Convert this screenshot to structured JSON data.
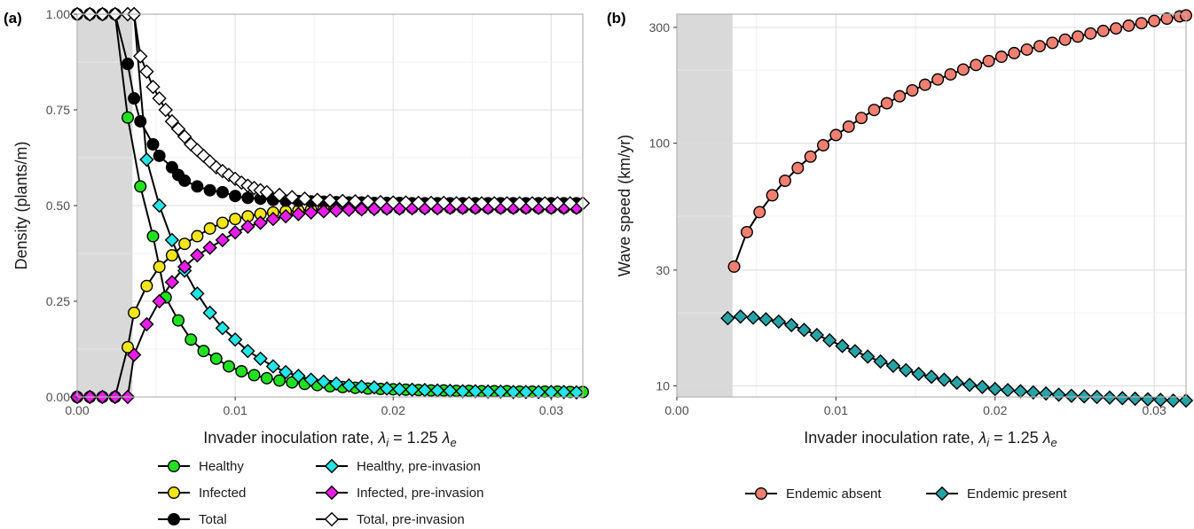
{
  "chart_data": [
    {
      "panel_label": "(a)",
      "type": "line",
      "ylabel": "Density (plants/m)",
      "xlabel": "Invader inoculation rate, λi = 1.25 λe",
      "xlim": [
        0,
        0.032
      ],
      "ylim": [
        0,
        1
      ],
      "x_ticks": [
        "0.00",
        "0.01",
        "0.02",
        "0.03"
      ],
      "y_ticks": [
        "0.00",
        "0.25",
        "0.50",
        "0.75",
        "1.00"
      ],
      "shaded_region_x": [
        0,
        0.0035
      ],
      "grid": true,
      "legend_position": "bottom",
      "series": [
        {
          "name": "Healthy",
          "marker": "circle",
          "color": "#1fe11f",
          "x": [
            0,
            0.0008,
            0.0016,
            0.0024,
            0.0032,
            0.004,
            0.0048,
            0.0056,
            0.0064,
            0.0072,
            0.008,
            0.0088,
            0.0096,
            0.0104,
            0.0112,
            0.012,
            0.0128,
            0.0136,
            0.0144,
            0.0152,
            0.016,
            0.0168,
            0.0176,
            0.0184,
            0.0192,
            0.02,
            0.0208,
            0.0216,
            0.0224,
            0.0232,
            0.024,
            0.0248,
            0.0256,
            0.0264,
            0.0272,
            0.028,
            0.0288,
            0.0296,
            0.0304,
            0.0312,
            0.032
          ],
          "y": [
            1,
            1,
            1,
            1,
            0.73,
            0.55,
            0.42,
            0.26,
            0.2,
            0.15,
            0.12,
            0.1,
            0.08,
            0.067,
            0.057,
            0.049,
            0.043,
            0.038,
            0.034,
            0.031,
            0.028,
            0.026,
            0.024,
            0.022,
            0.021,
            0.02,
            0.019,
            0.018,
            0.017,
            0.017,
            0.016,
            0.016,
            0.015,
            0.015,
            0.015,
            0.014,
            0.014,
            0.014,
            0.014,
            0.013,
            0.013
          ]
        },
        {
          "name": "Infected",
          "marker": "circle",
          "color": "#f2e51a",
          "x": [
            0,
            0.0008,
            0.0016,
            0.0024,
            0.0032,
            0.0036,
            0.0044,
            0.0052,
            0.006,
            0.0068,
            0.0076,
            0.0084,
            0.0092,
            0.01,
            0.0108,
            0.0116,
            0.0124,
            0.0132,
            0.014,
            0.0148,
            0.0156,
            0.0164,
            0.0172,
            0.018,
            0.0188,
            0.0196,
            0.0204,
            0.0212,
            0.022,
            0.0228,
            0.0236,
            0.0244,
            0.0252,
            0.026,
            0.0268,
            0.0276,
            0.0284,
            0.0292,
            0.03,
            0.0308,
            0.0316
          ],
          "y": [
            0,
            0,
            0,
            0,
            0.13,
            0.22,
            0.29,
            0.34,
            0.37,
            0.4,
            0.42,
            0.44,
            0.455,
            0.465,
            0.472,
            0.478,
            0.482,
            0.485,
            0.487,
            0.489,
            0.49,
            0.491,
            0.492,
            0.492,
            0.493,
            0.493,
            0.493,
            0.494,
            0.494,
            0.494,
            0.494,
            0.494,
            0.494,
            0.494,
            0.494,
            0.494,
            0.494,
            0.494,
            0.494,
            0.494,
            0.494
          ]
        },
        {
          "name": "Total",
          "marker": "circle",
          "color": "#000000",
          "x": [
            0,
            0.0008,
            0.0016,
            0.0024,
            0.0032,
            0.0036,
            0.004,
            0.0048,
            0.0052,
            0.006,
            0.0064,
            0.0068,
            0.0076,
            0.0084,
            0.0092,
            0.01,
            0.0108,
            0.0116,
            0.0124,
            0.0132,
            0.014,
            0.0148,
            0.0156,
            0.0164,
            0.0172,
            0.018,
            0.0188,
            0.0196,
            0.0204,
            0.0212,
            0.022,
            0.0228,
            0.0236,
            0.0244,
            0.0252,
            0.026,
            0.0268,
            0.0276,
            0.0284,
            0.0292,
            0.03,
            0.0308,
            0.0316
          ],
          "y": [
            1,
            1,
            1,
            1,
            0.87,
            0.78,
            0.72,
            0.66,
            0.63,
            0.6,
            0.58,
            0.565,
            0.55,
            0.54,
            0.535,
            0.525,
            0.52,
            0.518,
            0.515,
            0.513,
            0.512,
            0.511,
            0.51,
            0.509,
            0.508,
            0.508,
            0.507,
            0.507,
            0.507,
            0.506,
            0.506,
            0.506,
            0.506,
            0.506,
            0.506,
            0.506,
            0.506,
            0.506,
            0.506,
            0.506,
            0.506,
            0.506,
            0.506
          ]
        },
        {
          "name": "Healthy, pre-invasion",
          "marker": "diamond",
          "color": "#22e5e5",
          "x": [
            0,
            0.0008,
            0.0016,
            0.0024,
            0.0032,
            0.0036,
            0.0044,
            0.0052,
            0.006,
            0.0068,
            0.0076,
            0.0084,
            0.0092,
            0.01,
            0.0108,
            0.0116,
            0.0124,
            0.0132,
            0.014,
            0.0148,
            0.0156,
            0.0164,
            0.0172,
            0.018,
            0.0188,
            0.0196,
            0.0204,
            0.0212,
            0.022,
            0.0228,
            0.0236,
            0.0244,
            0.0252,
            0.026,
            0.0268,
            0.0276,
            0.0284,
            0.0292,
            0.03,
            0.0308,
            0.0316
          ],
          "y": [
            1,
            1,
            1,
            1,
            1,
            1,
            0.62,
            0.5,
            0.41,
            0.33,
            0.27,
            0.22,
            0.18,
            0.15,
            0.12,
            0.1,
            0.08,
            0.065,
            0.055,
            0.045,
            0.04,
            0.035,
            0.03,
            0.027,
            0.025,
            0.022,
            0.02,
            0.019,
            0.018,
            0.017,
            0.016,
            0.015,
            0.015,
            0.014,
            0.014,
            0.013,
            0.013,
            0.013,
            0.013,
            0.013,
            0.012
          ]
        },
        {
          "name": "Infected, pre-invasion",
          "marker": "diamond",
          "color": "#e81ee8",
          "x": [
            0,
            0.0008,
            0.0016,
            0.0024,
            0.0032,
            0.0036,
            0.0044,
            0.0052,
            0.006,
            0.0068,
            0.0076,
            0.0084,
            0.0092,
            0.01,
            0.0108,
            0.0116,
            0.0124,
            0.0132,
            0.014,
            0.0148,
            0.0156,
            0.0164,
            0.0172,
            0.018,
            0.0188,
            0.0196,
            0.0204,
            0.0212,
            0.022,
            0.0228,
            0.0236,
            0.0244,
            0.0252,
            0.026,
            0.0268,
            0.0276,
            0.0284,
            0.0292,
            0.03,
            0.0308,
            0.0316
          ],
          "y": [
            0,
            0,
            0,
            0,
            0,
            0.11,
            0.19,
            0.25,
            0.3,
            0.34,
            0.37,
            0.39,
            0.41,
            0.43,
            0.445,
            0.455,
            0.465,
            0.472,
            0.478,
            0.482,
            0.485,
            0.487,
            0.489,
            0.49,
            0.491,
            0.492,
            0.492,
            0.493,
            0.493,
            0.493,
            0.494,
            0.494,
            0.494,
            0.494,
            0.494,
            0.494,
            0.494,
            0.494,
            0.494,
            0.494,
            0.494
          ]
        },
        {
          "name": "Total, pre-invasion",
          "marker": "diamond",
          "color": "#ffffff",
          "x": [
            0,
            0.0008,
            0.0016,
            0.0024,
            0.0032,
            0.0036,
            0.004,
            0.0044,
            0.0048,
            0.0052,
            0.0056,
            0.006,
            0.0064,
            0.0068,
            0.0072,
            0.0076,
            0.008,
            0.0084,
            0.0088,
            0.0092,
            0.0096,
            0.01,
            0.0104,
            0.0108,
            0.0112,
            0.0116,
            0.012,
            0.0128,
            0.0136,
            0.0144,
            0.0152,
            0.016,
            0.0168,
            0.0176,
            0.0184,
            0.0192,
            0.02,
            0.0208,
            0.0216,
            0.0224,
            0.0232,
            0.024,
            0.0248,
            0.0256,
            0.0264,
            0.0272,
            0.028,
            0.0288,
            0.0296,
            0.0304,
            0.0312,
            0.032
          ],
          "y": [
            1,
            1,
            1,
            1,
            1,
            1,
            0.89,
            0.85,
            0.81,
            0.78,
            0.75,
            0.72,
            0.7,
            0.68,
            0.66,
            0.645,
            0.63,
            0.615,
            0.6,
            0.59,
            0.58,
            0.57,
            0.56,
            0.552,
            0.546,
            0.54,
            0.535,
            0.528,
            0.522,
            0.518,
            0.515,
            0.513,
            0.512,
            0.511,
            0.51,
            0.509,
            0.508,
            0.508,
            0.507,
            0.507,
            0.507,
            0.506,
            0.506,
            0.506,
            0.506,
            0.506,
            0.506,
            0.506,
            0.506,
            0.506,
            0.506,
            0.506
          ]
        }
      ],
      "legend": [
        "Healthy",
        "Healthy, pre-invasion",
        "Infected",
        "Infected, pre-invasion",
        "Total",
        "Total, pre-invasion"
      ]
    },
    {
      "panel_label": "(b)",
      "type": "line",
      "ylabel": "Wave speed (km/yr)",
      "xlabel": "Invader inoculation rate, λi = 1.25 λe",
      "y_scale": "log",
      "xlim": [
        0,
        0.032
      ],
      "ylim": [
        9,
        340
      ],
      "x_ticks": [
        "0.00",
        "0.01",
        "0.02",
        "0.03"
      ],
      "y_ticks": [
        "10",
        "30",
        "100",
        "300"
      ],
      "shaded_region_x": [
        0,
        0.0035
      ],
      "grid": true,
      "legend_position": "bottom",
      "series": [
        {
          "name": "Endemic absent",
          "marker": "circle",
          "color": "#f07f72",
          "x": [
            0.0036,
            0.0044,
            0.0052,
            0.006,
            0.0068,
            0.0076,
            0.0084,
            0.0092,
            0.01,
            0.0108,
            0.0116,
            0.0124,
            0.0132,
            0.014,
            0.0148,
            0.0156,
            0.0164,
            0.0172,
            0.018,
            0.0188,
            0.0196,
            0.0204,
            0.0212,
            0.022,
            0.0228,
            0.0236,
            0.0244,
            0.0252,
            0.026,
            0.0268,
            0.0276,
            0.0284,
            0.0292,
            0.03,
            0.0308,
            0.0316,
            0.032
          ],
          "y": [
            31,
            43,
            52,
            61,
            70,
            79,
            88,
            98,
            108,
            117,
            127,
            137,
            146,
            156,
            165,
            174,
            183,
            192,
            201,
            210,
            218,
            227,
            235,
            243,
            251,
            259,
            267,
            275,
            283,
            290,
            297,
            305,
            312,
            319,
            326,
            333,
            336
          ]
        },
        {
          "name": "Endemic present",
          "marker": "diamond",
          "color": "#26a3a6",
          "x": [
            0.0032,
            0.004,
            0.0048,
            0.0056,
            0.0064,
            0.0072,
            0.008,
            0.0088,
            0.0096,
            0.0104,
            0.0112,
            0.012,
            0.0128,
            0.0136,
            0.0144,
            0.0152,
            0.016,
            0.0168,
            0.0176,
            0.0184,
            0.0192,
            0.02,
            0.0208,
            0.0216,
            0.0224,
            0.0232,
            0.024,
            0.0248,
            0.0256,
            0.0264,
            0.0272,
            0.028,
            0.0288,
            0.0296,
            0.0304,
            0.0312,
            0.032
          ],
          "y": [
            19,
            19.3,
            19.1,
            18.8,
            18.4,
            17.8,
            17,
            16.2,
            15.4,
            14.6,
            13.9,
            13.2,
            12.6,
            12.1,
            11.6,
            11.2,
            10.9,
            10.6,
            10.3,
            10.1,
            9.9,
            9.7,
            9.6,
            9.5,
            9.4,
            9.3,
            9.2,
            9.1,
            9.05,
            9,
            8.95,
            8.9,
            8.85,
            8.8,
            8.75,
            8.7,
            8.7
          ]
        }
      ],
      "legend": [
        "Endemic absent",
        "Endemic present"
      ]
    }
  ]
}
